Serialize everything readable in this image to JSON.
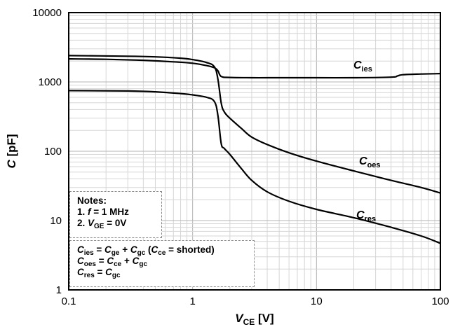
{
  "chart_data": {
    "type": "line",
    "xscale": "log",
    "yscale": "log",
    "xlim": [
      0.1,
      100
    ],
    "ylim": [
      1,
      10000
    ],
    "grid": true,
    "x_ticks": [
      "0.1",
      "1",
      "10",
      "100"
    ],
    "y_ticks": [
      "1",
      "10",
      "100",
      "1000",
      "10000"
    ],
    "xlabel": {
      "var": "V",
      "sub": "CE",
      "unit": " [V]"
    },
    "ylabel": {
      "var": "C",
      "unit": " [pF]"
    },
    "series": [
      {
        "name": "Cies",
        "label": {
          "var": "C",
          "sub": "ies"
        },
        "x": [
          0.1,
          0.2,
          0.4,
          0.7,
          1.0,
          1.3,
          1.5,
          1.6,
          1.7,
          2.0,
          3.0,
          5.0,
          10,
          20,
          40,
          45,
          50,
          70,
          100
        ],
        "y": [
          2150,
          2120,
          2050,
          1950,
          1860,
          1720,
          1600,
          1450,
          1200,
          1160,
          1150,
          1150,
          1150,
          1150,
          1170,
          1220,
          1270,
          1300,
          1320
        ]
      },
      {
        "name": "Coes",
        "label": {
          "var": "C",
          "sub": "oes"
        },
        "x": [
          0.1,
          0.3,
          0.5,
          0.8,
          1.0,
          1.3,
          1.5,
          1.6,
          1.7,
          1.8,
          2.0,
          2.5,
          3.0,
          4.0,
          6.0,
          10,
          20,
          40,
          70,
          100
        ],
        "y": [
          2400,
          2350,
          2300,
          2200,
          2100,
          1900,
          1650,
          1100,
          500,
          370,
          300,
          210,
          160,
          125,
          95,
          72,
          52,
          38,
          30,
          25
        ]
      },
      {
        "name": "Cres",
        "label": {
          "var": "C",
          "sub": "res"
        },
        "x": [
          0.1,
          0.3,
          0.5,
          0.8,
          1.0,
          1.3,
          1.5,
          1.6,
          1.7,
          1.8,
          2.0,
          2.5,
          3.0,
          4.0,
          6.0,
          10,
          20,
          40,
          70,
          100
        ],
        "y": [
          750,
          740,
          720,
          680,
          650,
          600,
          520,
          330,
          130,
          110,
          90,
          55,
          38,
          26,
          19,
          14.5,
          11,
          8,
          6,
          4.7
        ]
      }
    ],
    "notes": {
      "title": "Notes:",
      "line1": {
        "prefix": "1. ",
        "var": "f",
        "rest": " = 1 MHz"
      },
      "line2": {
        "prefix": "2. ",
        "var": "V",
        "sub": "GE",
        "rest": " = 0V"
      }
    },
    "formulas": [
      [
        {
          "t": "C",
          "i": true
        },
        {
          "t": "ies",
          "s": true
        },
        {
          "t": " = "
        },
        {
          "t": "C",
          "i": true
        },
        {
          "t": "ge",
          "s": true
        },
        {
          "t": " + "
        },
        {
          "t": "C",
          "i": true
        },
        {
          "t": "gc",
          "s": true
        },
        {
          "t": " ("
        },
        {
          "t": "C",
          "i": true
        },
        {
          "t": "ce",
          "s": true
        },
        {
          "t": " = shorted)"
        }
      ],
      [
        {
          "t": "C",
          "i": true
        },
        {
          "t": "oes",
          "s": true
        },
        {
          "t": " = "
        },
        {
          "t": "C",
          "i": true
        },
        {
          "t": "ce",
          "s": true
        },
        {
          "t": " + "
        },
        {
          "t": "C",
          "i": true
        },
        {
          "t": "gc",
          "s": true
        }
      ],
      [
        {
          "t": "C",
          "i": true
        },
        {
          "t": "res",
          "s": true
        },
        {
          "t": " = "
        },
        {
          "t": "C",
          "i": true
        },
        {
          "t": "gc",
          "s": true
        }
      ]
    ],
    "colors": {
      "line": "#000000",
      "grid_major": "#b4b4b4",
      "grid_minor": "#d6d6d6",
      "frame": "#000000"
    }
  }
}
